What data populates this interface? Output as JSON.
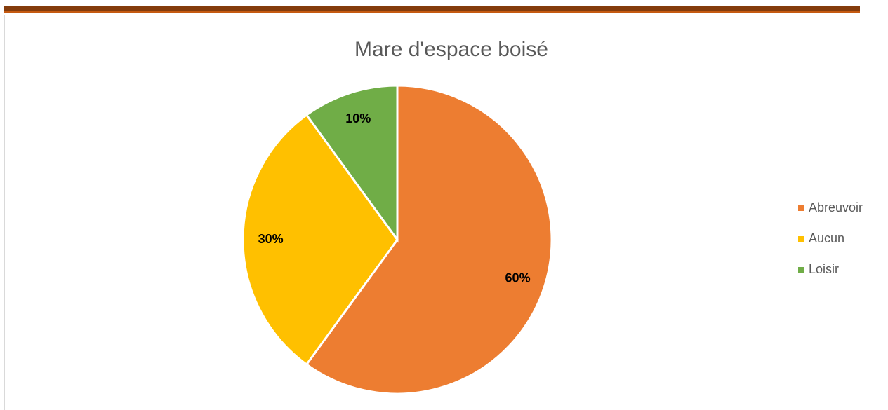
{
  "chart_data": {
    "type": "pie",
    "title": "Mare d'espace boisé",
    "categories": [
      "Abreuvoir",
      "Aucun",
      "Loisir"
    ],
    "values": [
      60,
      30,
      10
    ],
    "value_labels": [
      "60%",
      "30%",
      "10%"
    ],
    "colors": [
      "#ED7D31",
      "#FFC000",
      "#70AD47"
    ],
    "legend": "right"
  }
}
